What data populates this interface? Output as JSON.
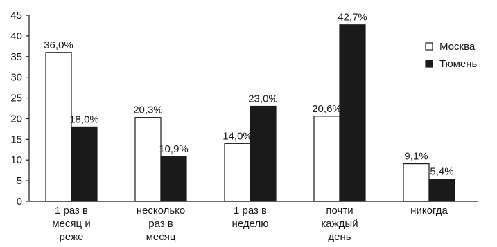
{
  "chart_data": {
    "type": "bar",
    "categories": [
      [
        "1 раз в",
        "месяц и",
        "реже"
      ],
      [
        "несколько",
        "раз в",
        "месяц"
      ],
      [
        "1 раз в",
        "неделю"
      ],
      [
        "почти",
        "каждый",
        "день"
      ],
      [
        "никогда"
      ]
    ],
    "series": [
      {
        "name": "Москва",
        "color": "#ffffff",
        "values": [
          36.0,
          20.3,
          14.0,
          20.6,
          9.1
        ],
        "labels": [
          "36,0%",
          "20,3%",
          "14,0%",
          "20,6%",
          "9,1%"
        ]
      },
      {
        "name": "Тюмень",
        "color": "#1a1a1a",
        "values": [
          18.0,
          10.9,
          23.0,
          42.7,
          5.4
        ],
        "labels": [
          "18,0%",
          "10,9%",
          "23,0%",
          "42,7%",
          "5,4%"
        ]
      }
    ],
    "yticks": [
      0,
      5,
      10,
      15,
      20,
      25,
      30,
      35,
      40,
      45
    ],
    "ylim": [
      0,
      45
    ],
    "title": "",
    "xlabel": "",
    "ylabel": "",
    "grid": false,
    "legend": "right"
  }
}
